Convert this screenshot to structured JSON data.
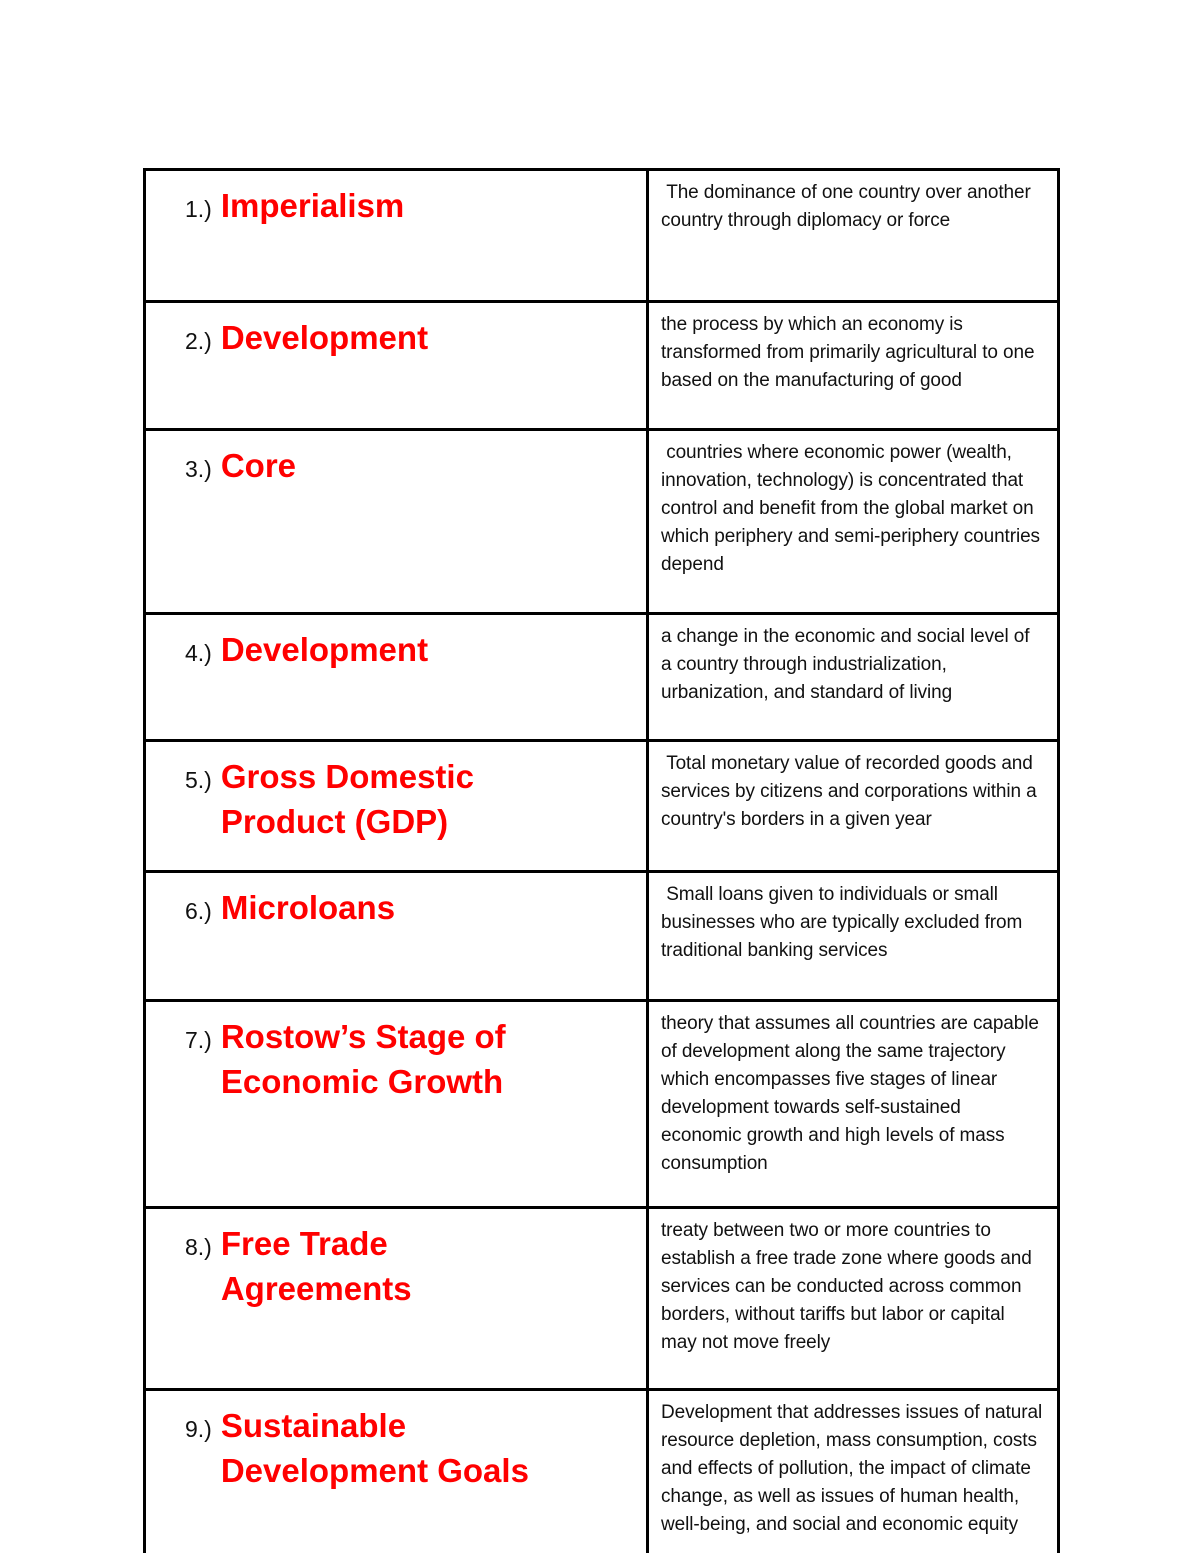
{
  "page": {
    "background_color": "#ffffff"
  },
  "table": {
    "accent_color": "#ff0000",
    "border_color": "#000000",
    "text_color": "#111111",
    "rows": [
      {
        "number": "1.)",
        "term": "Imperialism",
        "definition": " The dominance of one country over another country through diplomacy or force"
      },
      {
        "number": "2.)",
        "term": "Development",
        "definition": "the process by which an economy is transformed from primarily agricultural to one based on the manufacturing of good"
      },
      {
        "number": "3.)",
        "term": "Core",
        "definition": " countries where economic power (wealth, innovation, technology) is concentrated that control and benefit from the global market on which periphery and semi-periphery countries depend"
      },
      {
        "number": "4.)",
        "term": "Development",
        "definition": "a change in the economic and social level of a country through industrialization, urbanization, and standard of living"
      },
      {
        "number": "5.)",
        "term": "Gross Domestic Product (GDP)",
        "definition": " Total monetary value of recorded goods and services by citizens and corporations within a country's borders in a given year"
      },
      {
        "number": "6.)",
        "term": "Microloans",
        "definition": " Small loans given to individuals or small businesses who are typically excluded from traditional banking services"
      },
      {
        "number": "7.)",
        "term": "Rostow’s Stage of Economic Growth",
        "definition": "theory that assumes all countries are capable of development along the same trajectory which encompasses five stages of linear development towards self-sustained economic growth and high levels of mass consumption"
      },
      {
        "number": "8.)",
        "term": "Free Trade Agreements",
        "definition": "treaty between two or more countries to establish a free trade zone where goods and services can be conducted across common borders, without tariffs but labor or capital may not move freely"
      },
      {
        "number": "9.)",
        "term": "Sustainable Development Goals",
        "definition": "Development that addresses issues of natural resource depletion, mass consumption, costs and effects of pollution, the impact of climate change, as well as issues of human health, well-being, and social and economic equity"
      }
    ]
  }
}
